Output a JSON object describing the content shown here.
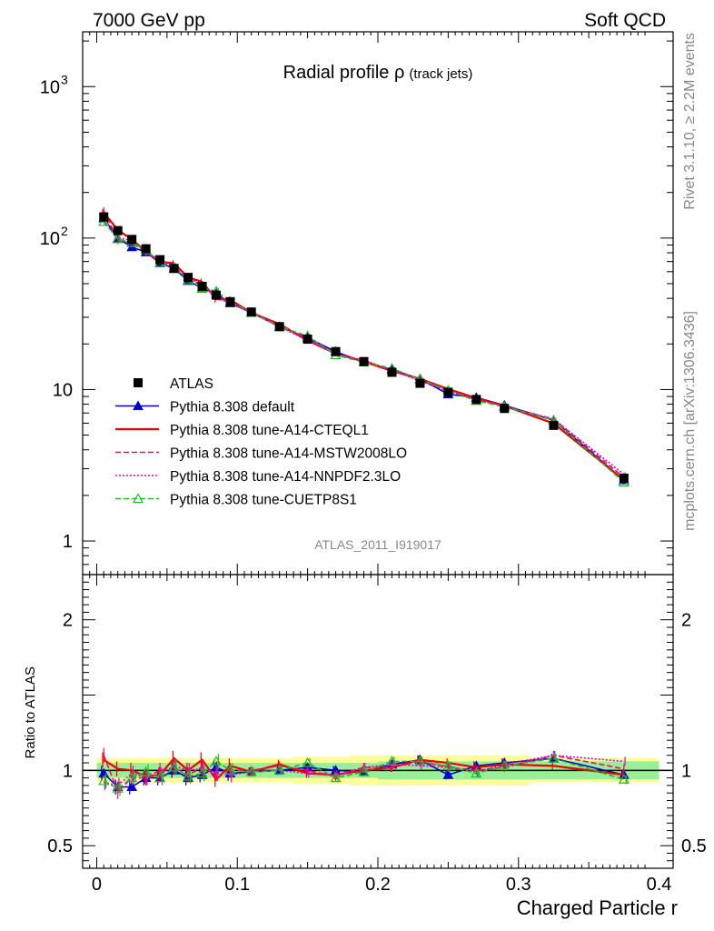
{
  "header": {
    "left": "7000 GeV pp",
    "right": "Soft QCD"
  },
  "side_labels": {
    "rivet": "Rivet 3.1.10, ≥ 2.2M events",
    "mcplots": "mcplots.cern.ch [arXiv:1306.3436]"
  },
  "chart_data": {
    "type": "line",
    "title": "Radial profile ρ",
    "title_suffix": "(track jets)",
    "analysis_id": "ATLAS_2011_I919017",
    "xlabel": "Charged Particle r",
    "ylabel_ratio": "Ratio to ATLAS",
    "xlim": [
      -0.01,
      0.41
    ],
    "ylim_main": [
      0.6,
      2300
    ],
    "yscale_main": "log",
    "ylim_ratio": [
      0.35,
      2.3
    ],
    "x_ticks": [
      "0",
      "0.1",
      "0.2",
      "0.3",
      "0.4"
    ],
    "y_ticks_main": [
      "1",
      "10",
      "10^2",
      "10^3"
    ],
    "y_ticks_ratio": [
      "0.5",
      "1",
      "2"
    ],
    "legend_position": "lower-left",
    "x": [
      0.005,
      0.015,
      0.025,
      0.035,
      0.045,
      0.055,
      0.065,
      0.075,
      0.085,
      0.095,
      0.11,
      0.13,
      0.15,
      0.17,
      0.19,
      0.21,
      0.23,
      0.25,
      0.27,
      0.29,
      0.325,
      0.375
    ],
    "data": {
      "name": "ATLAS",
      "values": [
        138,
        112,
        98,
        85,
        72,
        63,
        55,
        48,
        42,
        38,
        32.5,
        26,
        21.5,
        17.8,
        15.3,
        13,
        11,
        9.6,
        8.6,
        7.5,
        5.8,
        2.6
      ],
      "band_ratio_inner": [
        0.05,
        0.05,
        0.05,
        0.05,
        0.05,
        0.05,
        0.05,
        0.05,
        0.05,
        0.05,
        0.05,
        0.05,
        0.05,
        0.05,
        0.05,
        0.06,
        0.06,
        0.06,
        0.06,
        0.06,
        0.06,
        0.06
      ],
      "band_ratio_outer": [
        0.08,
        0.08,
        0.08,
        0.08,
        0.08,
        0.08,
        0.08,
        0.08,
        0.08,
        0.08,
        0.08,
        0.08,
        0.09,
        0.09,
        0.1,
        0.1,
        0.1,
        0.1,
        0.1,
        0.1,
        0.08,
        0.08
      ]
    },
    "series": [
      {
        "name": "Pythia 8.308 default",
        "color": "#0000cc",
        "dash": "",
        "marker": "triangle-filled",
        "ratio": [
          0.98,
          0.89,
          0.89,
          0.95,
          0.95,
          1.0,
          0.95,
          0.97,
          1.02,
          0.98,
          0.99,
          1.0,
          1.02,
          1.0,
          0.99,
          1.04,
          1.07,
          0.97,
          1.03,
          1.05,
          1.08,
          0.97
        ]
      },
      {
        "name": "Pythia 8.308 tune-A14-CTEQL1",
        "color": "#ee0000",
        "dash": "",
        "marker": "none",
        "ratio": [
          1.07,
          1.01,
          1.0,
          0.96,
          0.97,
          1.08,
          1.0,
          1.07,
          0.94,
          1.03,
          0.99,
          1.04,
          0.98,
          0.97,
          1.0,
          1.02,
          1.07,
          1.05,
          1.02,
          1.04,
          1.03,
          0.97
        ]
      },
      {
        "name": "Pythia 8.308 tune-A14-MSTW2008LO",
        "color": "#ff0066",
        "dash": "6,3",
        "marker": "none",
        "ratio": [
          1.1,
          0.86,
          0.95,
          0.95,
          1.0,
          1.02,
          0.97,
          1.02,
          0.98,
          1.0,
          1.0,
          1.03,
          1.0,
          0.96,
          1.02,
          1.02,
          1.06,
          1.02,
          1.0,
          1.02,
          1.1,
          1.01
        ]
      },
      {
        "name": "Pythia 8.308 tune-A14-NNPDF2.3LO",
        "color": "#dd00dd",
        "dash": "2,2",
        "marker": "none",
        "ratio": [
          0.92,
          0.9,
          0.98,
          0.95,
          0.97,
          1.03,
          1.0,
          1.01,
          0.98,
          0.97,
          0.99,
          1.0,
          0.98,
          0.97,
          1.02,
          1.04,
          1.03,
          1.02,
          0.99,
          1.04,
          1.1,
          1.06
        ]
      },
      {
        "name": "Pythia 8.308 tune-CUETP8S1",
        "color": "#22bb22",
        "dash": "6,3",
        "marker": "triangle-open",
        "ratio": [
          0.93,
          0.88,
          0.95,
          0.99,
          0.95,
          1.02,
          0.96,
          0.98,
          1.06,
          1.0,
          0.99,
          1.0,
          1.05,
          0.95,
          0.99,
          1.06,
          1.06,
          1.03,
          0.98,
          1.03,
          1.08,
          0.94
        ]
      }
    ]
  }
}
